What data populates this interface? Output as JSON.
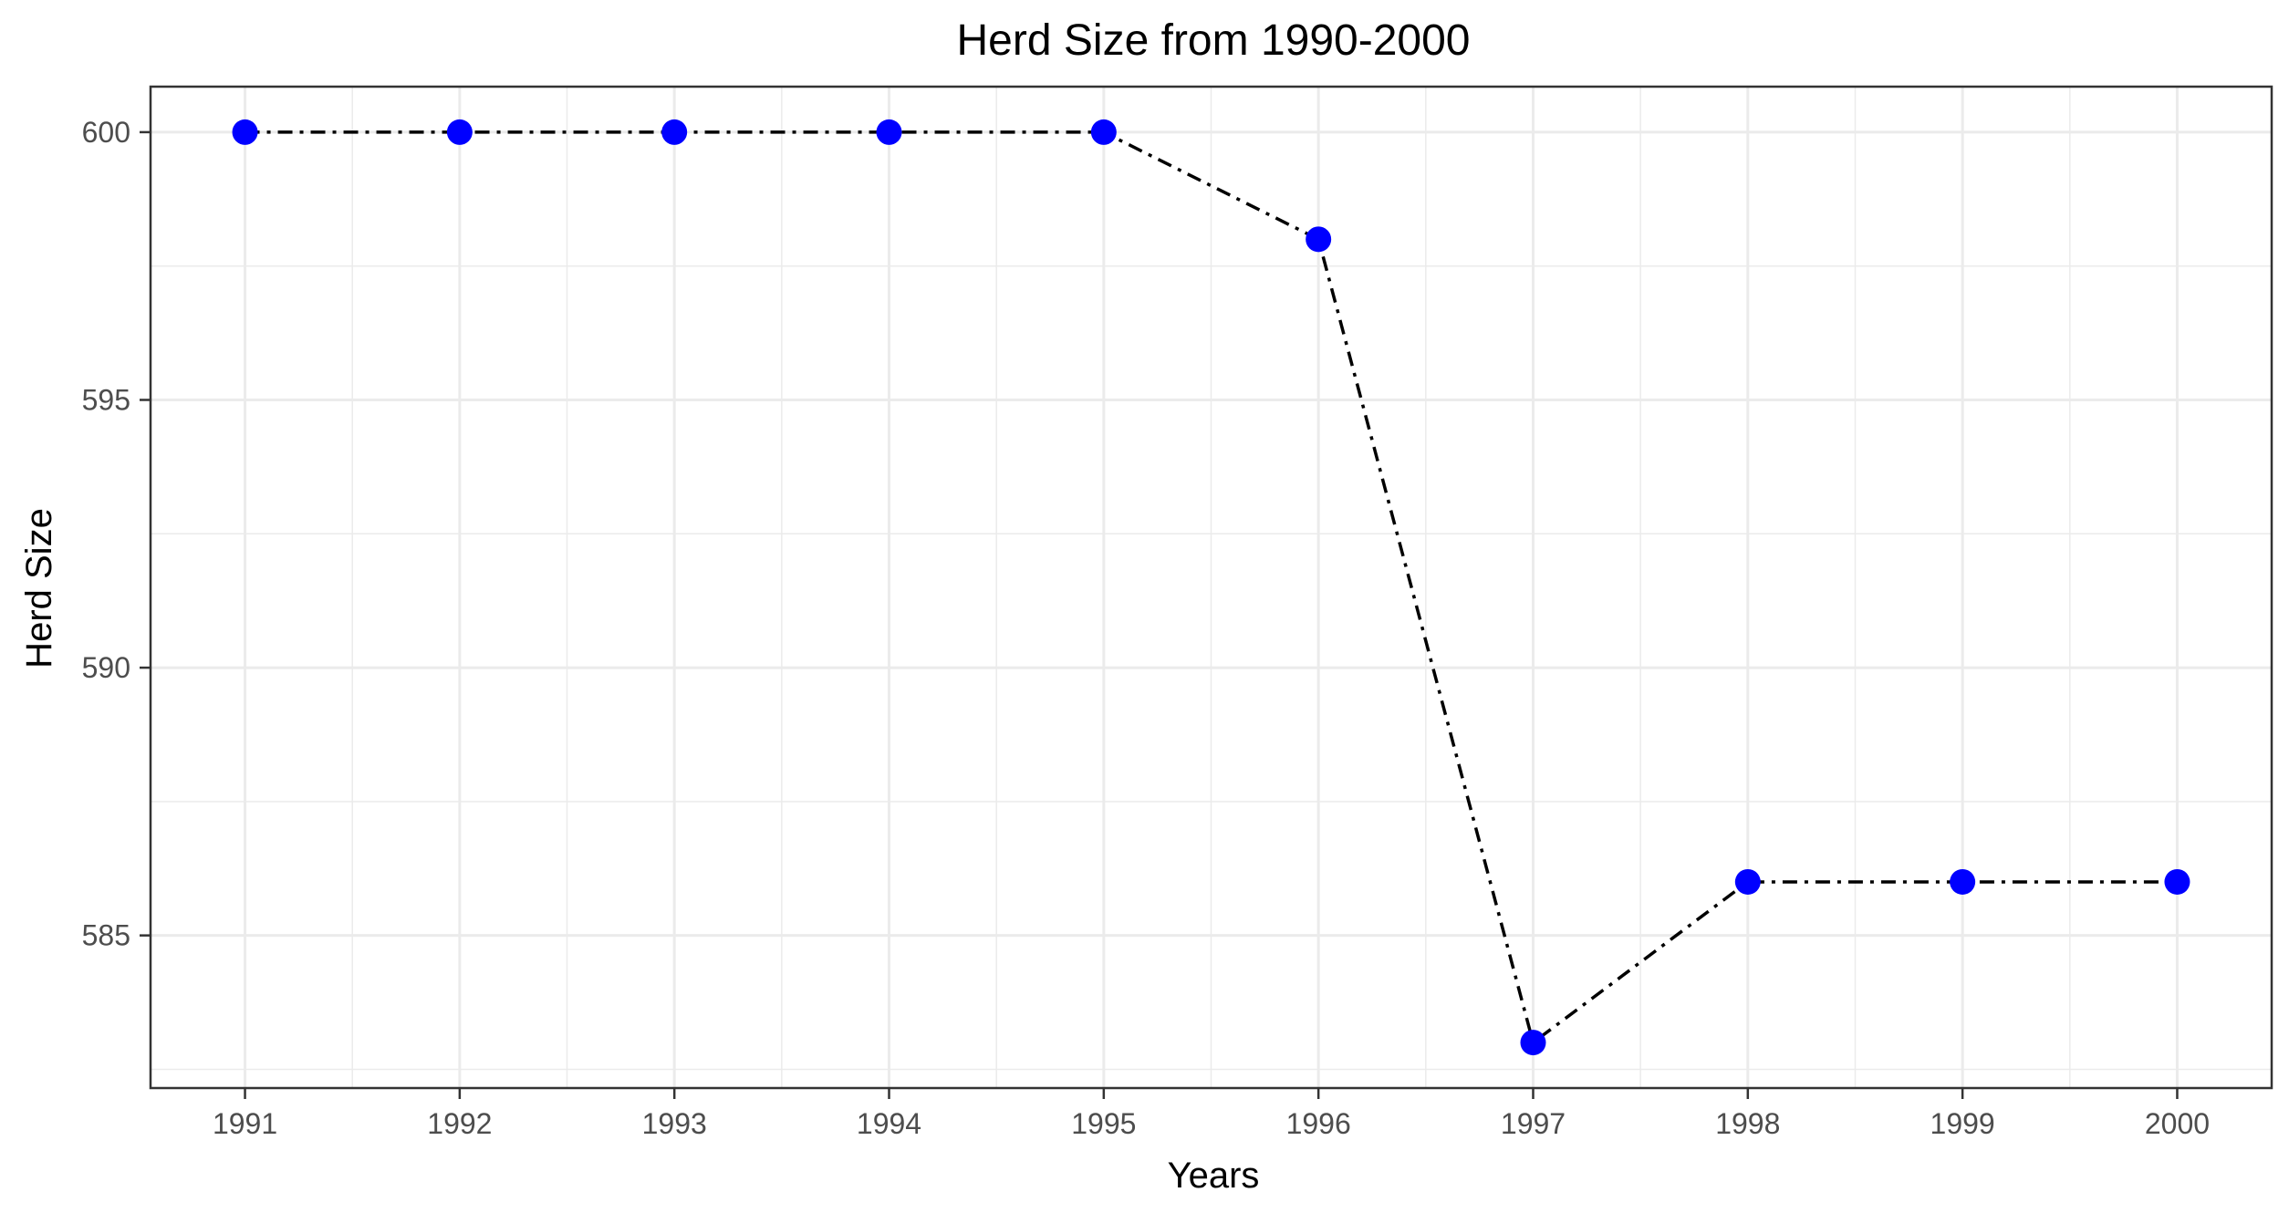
{
  "chart_data": {
    "type": "line",
    "title": "Herd Size from 1990-2000",
    "xlabel": "Years",
    "ylabel": "Herd Size",
    "x": [
      1991,
      1992,
      1993,
      1994,
      1995,
      1996,
      1997,
      1998,
      1999,
      2000
    ],
    "series": [
      {
        "values": [
          600,
          600,
          600,
          600,
          600,
          598,
          583,
          586,
          586,
          586
        ]
      }
    ],
    "xlim": [
      1990.56,
      2000.44
    ],
    "ylim": [
      582.15,
      600.85
    ],
    "x_ticks": [
      "1991",
      "1992",
      "1993",
      "1994",
      "1995",
      "1996",
      "1997",
      "1998",
      "1999",
      "2000"
    ],
    "y_ticks": [
      585,
      590,
      595,
      600
    ],
    "y_tick_labels": [
      "585",
      "590",
      "595",
      "600"
    ],
    "grid": true,
    "line_style": "dash-dot",
    "colors": {
      "line": "#000000",
      "point": "#0000ff",
      "grid": "#ebebeb",
      "panel_border": "#333333"
    }
  }
}
